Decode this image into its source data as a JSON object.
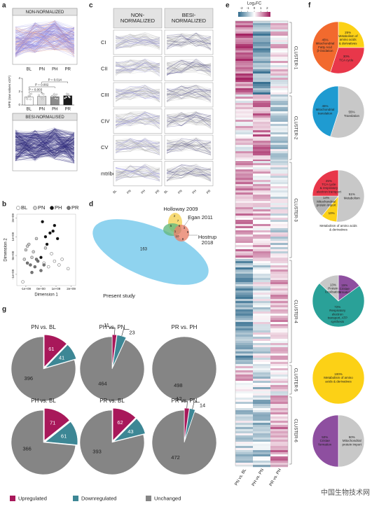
{
  "panels": {
    "a": {
      "label": "a",
      "top_title": "NON-NORMALIZED",
      "bottom_title": "BESI-NORMALISED",
      "chart_data": {
        "type": "bar",
        "ylabel": "MPE (raw values x10⁵)",
        "categories": [
          "BL",
          "PN",
          "PH",
          "PR"
        ],
        "values": [
          1.2,
          1.3,
          1.25,
          1.4
        ],
        "colors": [
          "#ffffff",
          "#d9d9d9",
          "#8c8c8c",
          "#1a1a1a"
        ],
        "ylim": [
          0,
          4
        ],
        "yticks": [
          0,
          2,
          4
        ],
        "annotations": [
          "P = 0.014",
          "P = 0.002",
          "P = 0.003"
        ]
      }
    },
    "b": {
      "label": "b",
      "chart_data": {
        "type": "scatter",
        "xlabel": "Dimension 1",
        "ylabel": "Dimension 2",
        "xlim": [
          -1600000000.0,
          2300000000.0
        ],
        "xticks": [
          {
            "value": -1000000000.0,
            "label": "-1e+09"
          },
          {
            "value": 0,
            "label": "0e+00"
          },
          {
            "value": 1000000000.0,
            "label": "1e+09"
          },
          {
            "value": 2000000000.0,
            "label": "2e+09"
          }
        ],
        "ylim": [
          -1600000000.0,
          2200000000.0
        ],
        "yticks": [
          {
            "value": -1000000000.0,
            "label": "-1e+09"
          },
          {
            "value": 0,
            "label": "0e+00"
          },
          {
            "value": 1000000000.0,
            "label": "1e+09"
          },
          {
            "value": 2000000000.0,
            "label": "2e+09"
          }
        ],
        "series": [
          {
            "name": "BL",
            "color": "#ffffff",
            "x": [
              900000000.0,
              1200000000.0,
              500000000.0,
              1800000000.0,
              200000000.0,
              -1200000000.0,
              700000000.0,
              1400000000.0
            ],
            "y": [
              -300000000.0,
              -500000000.0,
              -600000000.0,
              -700000000.0,
              -400000000.0,
              -1400000000.0,
              100000000.0,
              -200000000.0
            ]
          },
          {
            "name": "PN",
            "color": "#cfcfcf",
            "x": [
              -1000000000.0,
              -800000000.0,
              -500000000.0,
              -1100000000.0,
              -300000000.0,
              -600000000.0,
              -900000000.0,
              300000000.0
            ],
            "y": [
              300000000.0,
              600000000.0,
              200000000.0,
              -200000000.0,
              900000000.0,
              -100000000.0,
              500000000.0,
              400000000.0
            ]
          },
          {
            "name": "PH",
            "color": "#111111",
            "x": [
              100000000.0,
              600000000.0,
              900000000.0,
              400000000.0,
              1100000000.0,
              300000000.0,
              0,
              800000000.0
            ],
            "y": [
              1800000000.0,
              1200000000.0,
              1600000000.0,
              600000000.0,
              900000000.0,
              1000000000.0,
              -100000000.0,
              1300000000.0
            ]
          },
          {
            "name": "PR",
            "color": "#777777",
            "x": [
              -700000000.0,
              -400000000.0,
              -200000000.0,
              0,
              -900000000.0,
              200000000.0,
              -600000000.0,
              -300000000.0
            ],
            "y": [
              -500000000.0,
              -600000000.0,
              -300000000.0,
              -800000000.0,
              -400000000.0,
              -500000000.0,
              -900000000.0,
              -200000000.0
            ]
          }
        ]
      }
    },
    "c": {
      "label": "c",
      "col_headers": [
        [
          "NON-",
          "NORMALIZED"
        ],
        [
          "BESI-",
          "NORMALIZED"
        ]
      ],
      "rows": [
        "CI",
        "CII",
        "CIII",
        "CIV",
        "CV",
        "mtribo"
      ],
      "xlabels": [
        "BL",
        "PN",
        "PH",
        "PR"
      ]
    },
    "d": {
      "label": "d",
      "sets": [
        [
          "Holloway 2009"
        ],
        [
          "Egan 2011"
        ],
        [
          "Hostrup",
          "2018"
        ],
        [
          "Present study"
        ]
      ],
      "counts": [
        163,
        2,
        7,
        5,
        6,
        4,
        1,
        9,
        10,
        8
      ]
    },
    "e": {
      "label": "e",
      "title": "Log₂FC",
      "colorbar_lim": [
        -2.5,
        2.5
      ],
      "colorbar_ticks": [
        -2,
        -1,
        0,
        1,
        2
      ],
      "clusters": [
        "CLUSTER-1",
        "CLUSTER-2",
        "CLUSTER-3",
        "CLUSTER-4",
        "CLUSTER-5",
        "CLUSTER-6"
      ],
      "columns": [
        "PN vs. BL",
        "PH vs. PN",
        "PR vs. PH"
      ]
    },
    "f": {
      "label": "f",
      "type": "pie",
      "pies": [
        {
          "values": [
            25,
            30,
            45
          ],
          "value_labels": [
            "25%",
            "30%",
            "45%"
          ],
          "colors": [
            "#fcd116",
            "#e8374a",
            "#f26a2e"
          ],
          "labels": [
            [
              "Metabolism of",
              "amino acids",
              "& derivatives"
            ],
            [
              "TCA cycle"
            ],
            [
              "Mitochondrial",
              "Fatty Acid",
              "β-Oxidation"
            ]
          ]
        },
        {
          "values": [
            55,
            45
          ],
          "value_labels": [
            "55%",
            "45%"
          ],
          "colors": [
            "#c8c8c8",
            "#1f9bd1"
          ],
          "labels": [
            [
              "Translation"
            ],
            [
              "Mitochondrial",
              "translation"
            ]
          ]
        },
        {
          "values": [
            51,
            10,
            14,
            25
          ],
          "value_labels": [
            "51%",
            "10%",
            "14%",
            "25%"
          ],
          "colors": [
            "#c8c8c8",
            "#fcd116",
            "#b4b4b4",
            "#e8374a"
          ],
          "labels": [
            [
              "Metabolism"
            ],
            [
              "Metabolism of amino acids",
              "& derivatives"
            ],
            [
              "Mitochondrial",
              "protein import"
            ],
            [
              "TCA cycle",
              "& respiratory",
              "electron transport"
            ]
          ]
        },
        {
          "values": [
            15,
            72,
            13
          ],
          "value_labels": [
            "15%",
            "72%",
            "13%"
          ],
          "colors": [
            "#8e4fa0",
            "#2aa198",
            "#c8c8c8"
          ],
          "labels": [
            [
              "Cristae",
              "formation"
            ],
            [
              "Respiratory",
              "electron",
              "transport, ATP",
              "synthesis"
            ],
            [
              "Protein",
              "localisation"
            ]
          ]
        },
        {
          "values": [
            100
          ],
          "value_labels": [
            "100%"
          ],
          "colors": [
            "#fcd116"
          ],
          "labels": [
            [
              "Metabolism of amino",
              "acids & derivatives"
            ]
          ]
        },
        {
          "values": [
            50,
            50
          ],
          "value_labels": [
            "50%",
            "50%"
          ],
          "colors": [
            "#c8c8c8",
            "#8e4fa0"
          ],
          "labels": [
            [
              "Mitochondrial",
              "protein import"
            ],
            [
              "Cristae",
              "formation"
            ]
          ]
        }
      ]
    },
    "g": {
      "label": "g",
      "type": "pie",
      "legend": [
        "Upregulated",
        "Downregulated",
        "Unchanged"
      ],
      "colors": [
        "#a8185a",
        "#3d8795",
        "#858585"
      ],
      "pies": [
        {
          "title": "PN vs. BL",
          "values": [
            61,
            41,
            396
          ]
        },
        {
          "title": "PH vs. PN",
          "values": [
            11,
            23,
            464
          ]
        },
        {
          "title": "PR vs. PH",
          "values": [
            0,
            0,
            498
          ]
        },
        {
          "title": "PH vs. BL",
          "values": [
            71,
            61,
            366
          ]
        },
        {
          "title": "PR vs. BL",
          "values": [
            62,
            43,
            393
          ]
        },
        {
          "title": "PR vs. PN",
          "values": [
            12,
            14,
            472
          ]
        }
      ]
    }
  },
  "watermark": "中国生物技术网"
}
